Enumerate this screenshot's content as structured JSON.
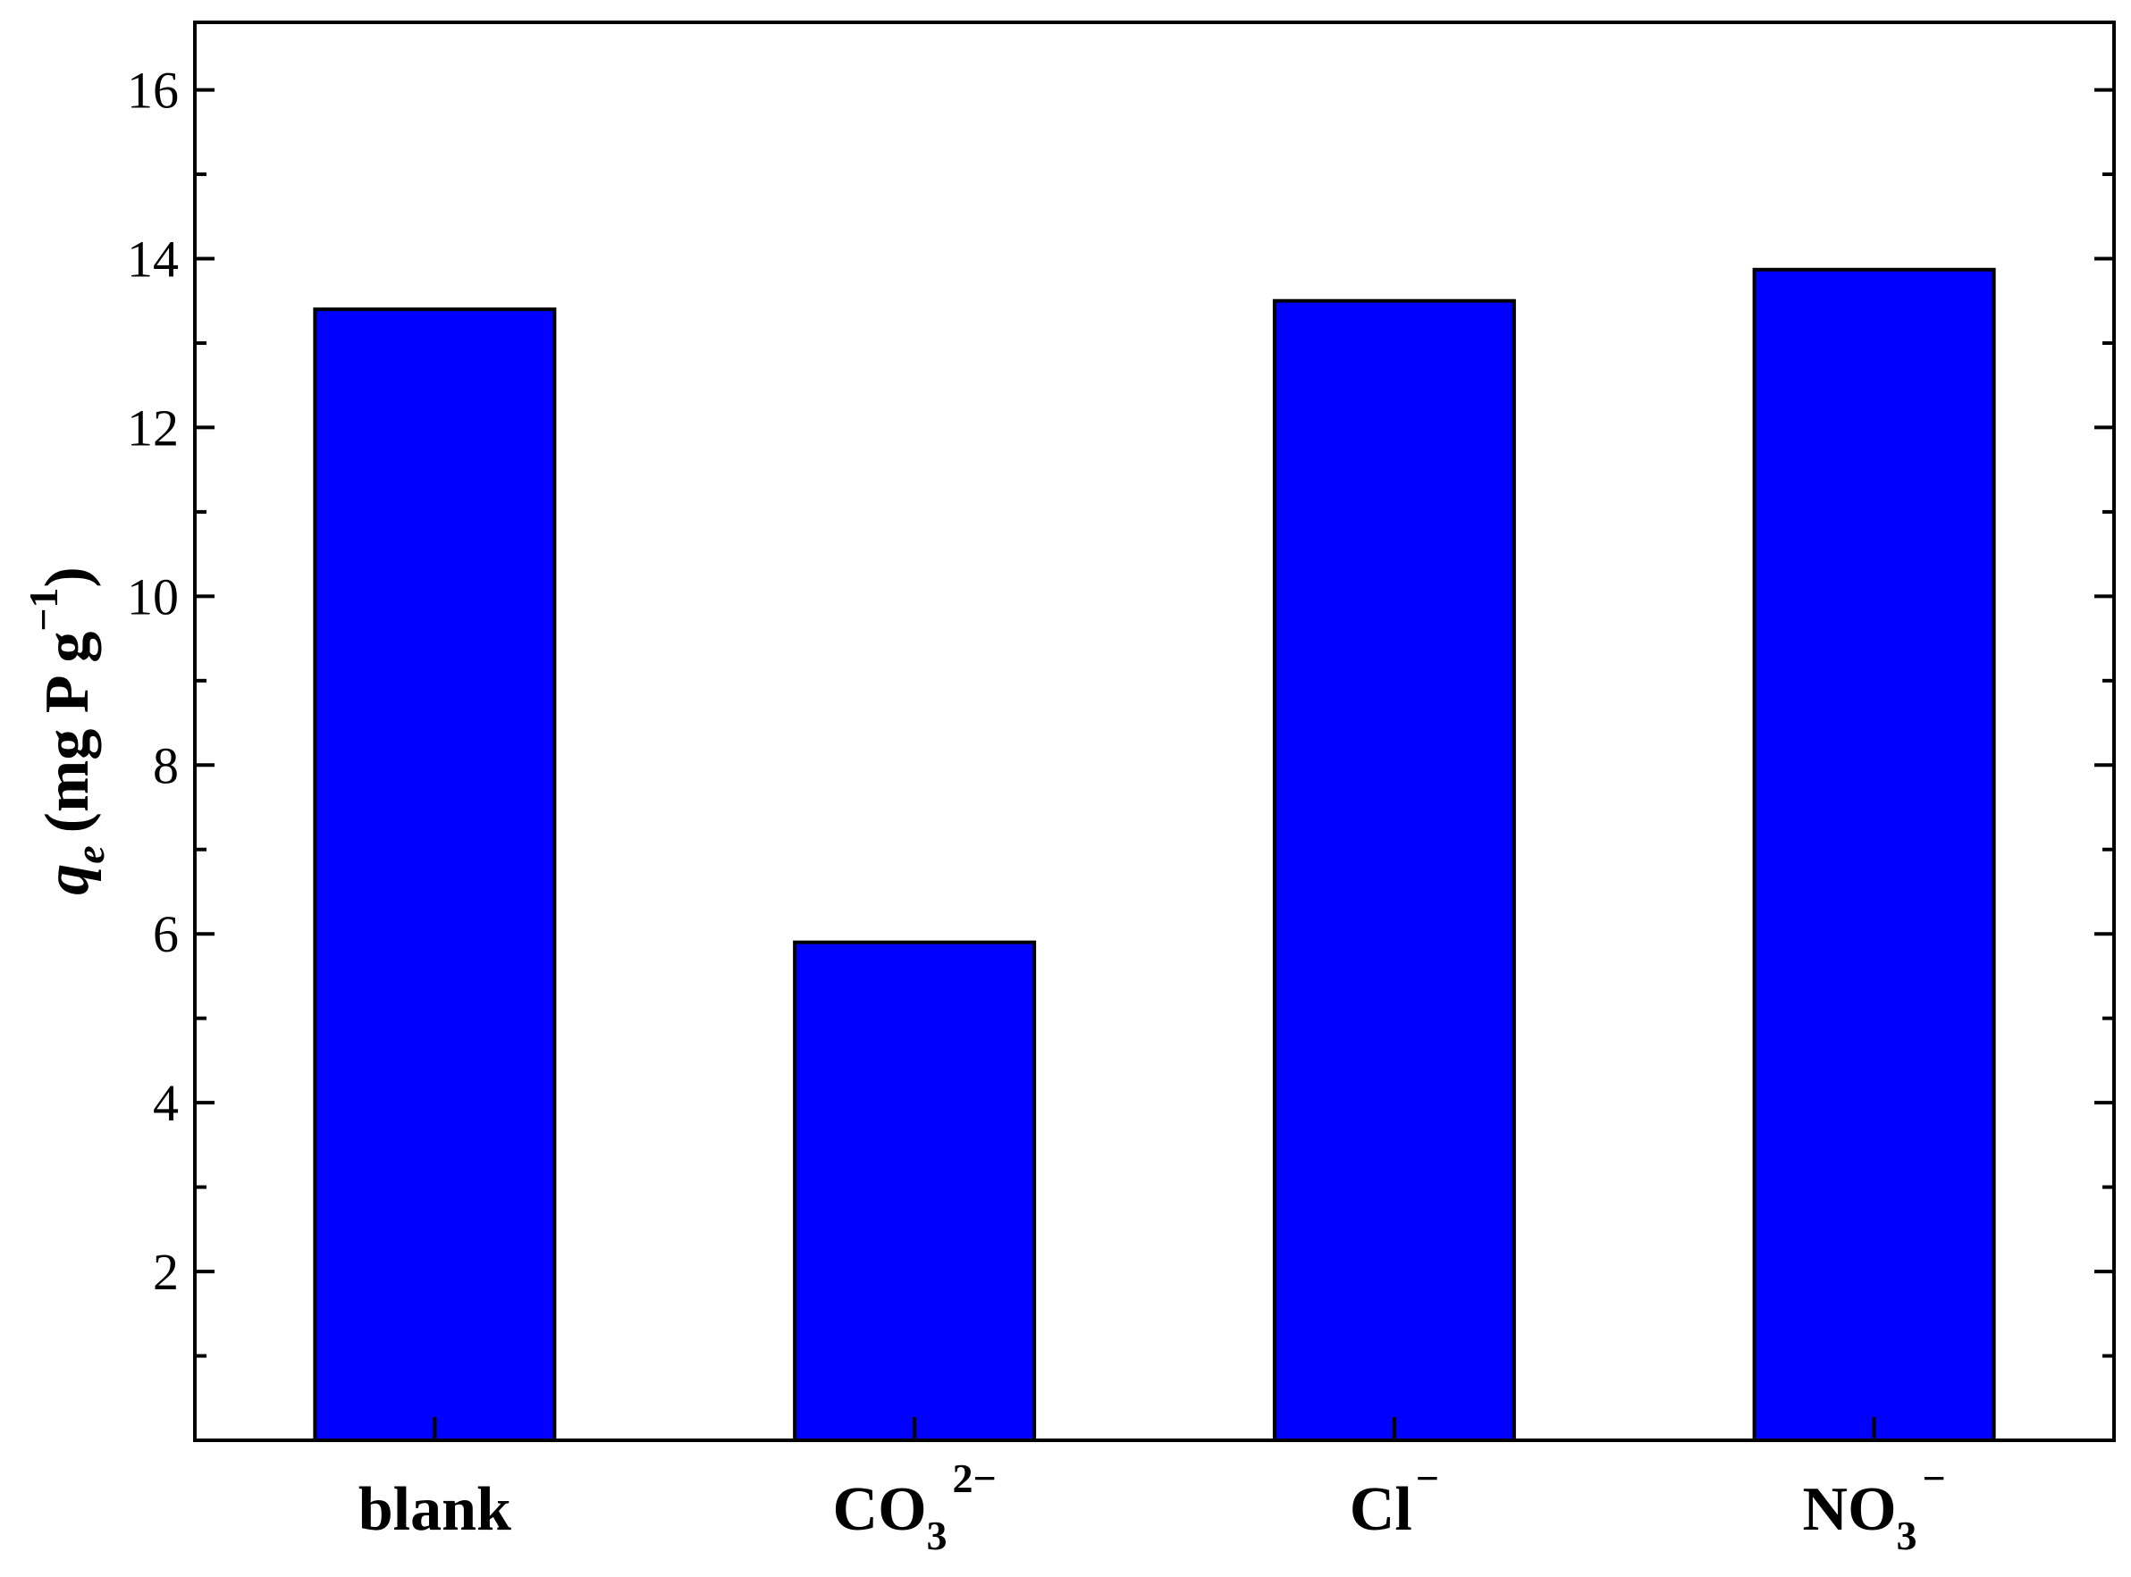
{
  "chart_data": {
    "type": "bar",
    "categories": [
      {
        "base": "blank",
        "sub": "",
        "sup": ""
      },
      {
        "base": "CO",
        "sub": "3",
        "sup": "2−"
      },
      {
        "base": "Cl",
        "sub": "",
        "sup": "−"
      },
      {
        "base": "NO",
        "sub": "3",
        "sup": "−"
      }
    ],
    "values": [
      13.4,
      5.9,
      13.5,
      13.87
    ],
    "ylabel": {
      "symbol": "q",
      "subscript": "e",
      "units": "(mg P g",
      "exponent": "−1",
      "close": ")"
    },
    "ylim": [
      0,
      16.8
    ],
    "yticks": [
      2,
      4,
      6,
      8,
      10,
      12,
      14,
      16
    ],
    "yticks_minor": [
      1,
      3,
      5,
      7,
      9,
      11,
      13,
      15
    ],
    "grid": false,
    "bar_color": "#0000FF",
    "bar_edge_color": "#000000",
    "background": "#FFFFFF"
  }
}
